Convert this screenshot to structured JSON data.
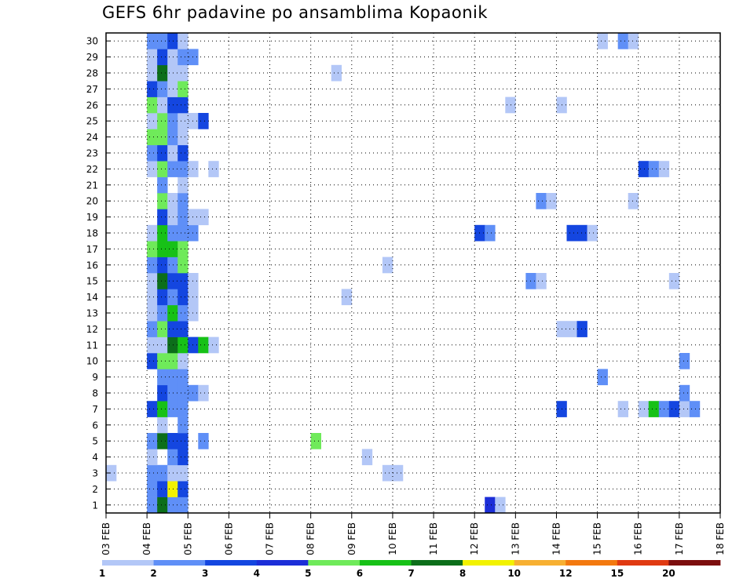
{
  "chart_data": {
    "type": "heatmap",
    "title": "GEFS 6hr padavine po ansamblima Kopaonik",
    "xlabel": "",
    "ylabel": "",
    "x_ticks": [
      "03 FEB",
      "04 FEB",
      "05 FEB",
      "06 FEB",
      "07 FEB",
      "08 FEB",
      "09 FEB",
      "10 FEB",
      "11 FEB",
      "12 FEB",
      "13 FEB",
      "14 FEB",
      "15 FEB",
      "16 FEB",
      "17 FEB",
      "18 FEB"
    ],
    "y_ticks": [
      1,
      2,
      3,
      4,
      5,
      6,
      7,
      8,
      9,
      10,
      11,
      12,
      13,
      14,
      15,
      16,
      17,
      18,
      19,
      20,
      21,
      22,
      23,
      24,
      25,
      26,
      27,
      28,
      29,
      30
    ],
    "xlim": [
      "03 FEB",
      "18 FEB"
    ],
    "ylim": [
      0.5,
      30.5
    ],
    "grid": true,
    "legend_placement": "bottom",
    "levels": [
      1,
      2,
      3,
      4,
      5,
      6,
      7,
      8,
      10,
      12,
      15,
      20
    ],
    "level_colors": [
      "#b3c7f7",
      "#5f8ff7",
      "#1446e0",
      "#1c2ed8",
      "#6fea5a",
      "#17c117",
      "#0c6e1a",
      "#f2f200",
      "#f7b032",
      "#f3790f",
      "#e03a12",
      "#7c0e0e"
    ],
    "cell_step_hours": 6,
    "members": [
      {
        "member": 1,
        "cells": [
          [
            4.0,
            2
          ],
          [
            4.25,
            7
          ],
          [
            4.5,
            2
          ],
          [
            4.75,
            2
          ],
          [
            12.25,
            4
          ],
          [
            12.5,
            1
          ]
        ]
      },
      {
        "member": 2,
        "cells": [
          [
            4.0,
            2
          ],
          [
            4.25,
            3
          ],
          [
            4.5,
            8
          ],
          [
            4.75,
            3
          ]
        ]
      },
      {
        "member": 3,
        "cells": [
          [
            3.0,
            1
          ],
          [
            4.0,
            2
          ],
          [
            4.25,
            2
          ],
          [
            4.5,
            1
          ],
          [
            4.75,
            1
          ],
          [
            9.75,
            1
          ],
          [
            10.0,
            1
          ]
        ]
      },
      {
        "member": 4,
        "cells": [
          [
            4.0,
            1
          ],
          [
            4.5,
            2
          ],
          [
            4.75,
            3
          ],
          [
            9.25,
            1
          ]
        ]
      },
      {
        "member": 5,
        "cells": [
          [
            4.0,
            2
          ],
          [
            4.25,
            7
          ],
          [
            4.5,
            3
          ],
          [
            4.75,
            3
          ],
          [
            5.25,
            2
          ],
          [
            8.0,
            5
          ]
        ]
      },
      {
        "member": 6,
        "cells": [
          [
            4.25,
            1
          ],
          [
            4.75,
            2
          ]
        ]
      },
      {
        "member": 7,
        "cells": [
          [
            4.0,
            3
          ],
          [
            4.25,
            6
          ],
          [
            4.5,
            2
          ],
          [
            4.75,
            2
          ],
          [
            14.0,
            3
          ],
          [
            15.5,
            1
          ],
          [
            16.0,
            1
          ],
          [
            16.25,
            6
          ],
          [
            16.5,
            2
          ],
          [
            16.75,
            3
          ],
          [
            17.0,
            1
          ],
          [
            17.25,
            2
          ]
        ]
      },
      {
        "member": 8,
        "cells": [
          [
            4.25,
            3
          ],
          [
            4.5,
            2
          ],
          [
            4.75,
            2
          ],
          [
            5.0,
            2
          ],
          [
            5.25,
            1
          ],
          [
            17.0,
            2
          ]
        ]
      },
      {
        "member": 9,
        "cells": [
          [
            4.25,
            2
          ],
          [
            4.5,
            2
          ],
          [
            4.75,
            2
          ],
          [
            15.0,
            2
          ]
        ]
      },
      {
        "member": 10,
        "cells": [
          [
            4.0,
            3
          ],
          [
            4.25,
            5
          ],
          [
            4.5,
            5
          ],
          [
            4.75,
            1
          ],
          [
            17.0,
            2
          ]
        ]
      },
      {
        "member": 11,
        "cells": [
          [
            4.0,
            1
          ],
          [
            4.25,
            1
          ],
          [
            4.5,
            7
          ],
          [
            4.75,
            6
          ],
          [
            5.0,
            3
          ],
          [
            5.25,
            6
          ],
          [
            5.5,
            1
          ]
        ]
      },
      {
        "member": 12,
        "cells": [
          [
            4.0,
            2
          ],
          [
            4.25,
            5
          ],
          [
            4.5,
            3
          ],
          [
            4.75,
            3
          ],
          [
            14.0,
            1
          ],
          [
            14.25,
            1
          ],
          [
            14.5,
            3
          ]
        ]
      },
      {
        "member": 13,
        "cells": [
          [
            4.0,
            1
          ],
          [
            4.25,
            2
          ],
          [
            4.5,
            6
          ],
          [
            4.75,
            2
          ],
          [
            5.0,
            1
          ]
        ]
      },
      {
        "member": 14,
        "cells": [
          [
            4.0,
            1
          ],
          [
            4.25,
            3
          ],
          [
            4.5,
            2
          ],
          [
            4.75,
            3
          ],
          [
            5.0,
            1
          ],
          [
            8.75,
            1
          ]
        ]
      },
      {
        "member": 15,
        "cells": [
          [
            4.0,
            1
          ],
          [
            4.25,
            7
          ],
          [
            4.5,
            3
          ],
          [
            4.75,
            3
          ],
          [
            5.0,
            1
          ],
          [
            13.25,
            2
          ],
          [
            13.5,
            1
          ],
          [
            16.75,
            1
          ]
        ]
      },
      {
        "member": 16,
        "cells": [
          [
            4.0,
            2
          ],
          [
            4.25,
            3
          ],
          [
            4.5,
            2
          ],
          [
            4.75,
            5
          ],
          [
            9.75,
            1
          ]
        ]
      },
      {
        "member": 17,
        "cells": [
          [
            4.0,
            5
          ],
          [
            4.25,
            6
          ],
          [
            4.5,
            6
          ],
          [
            4.75,
            5
          ]
        ]
      },
      {
        "member": 18,
        "cells": [
          [
            4.0,
            1
          ],
          [
            4.25,
            6
          ],
          [
            4.5,
            2
          ],
          [
            4.75,
            2
          ],
          [
            5.0,
            2
          ],
          [
            12.0,
            3
          ],
          [
            12.25,
            2
          ],
          [
            14.25,
            3
          ],
          [
            14.5,
            3
          ],
          [
            14.75,
            1
          ]
        ]
      },
      {
        "member": 19,
        "cells": [
          [
            4.25,
            3
          ],
          [
            4.5,
            1
          ],
          [
            4.75,
            2
          ],
          [
            5.0,
            1
          ],
          [
            5.25,
            1
          ]
        ]
      },
      {
        "member": 20,
        "cells": [
          [
            4.25,
            5
          ],
          [
            4.5,
            1
          ],
          [
            4.75,
            2
          ],
          [
            13.5,
            2
          ],
          [
            13.75,
            1
          ],
          [
            15.75,
            1
          ]
        ]
      },
      {
        "member": 21,
        "cells": [
          [
            4.25,
            2
          ],
          [
            4.75,
            1
          ]
        ]
      },
      {
        "member": 22,
        "cells": [
          [
            4.0,
            1
          ],
          [
            4.25,
            5
          ],
          [
            4.5,
            2
          ],
          [
            4.75,
            2
          ],
          [
            5.0,
            1
          ],
          [
            5.5,
            1
          ],
          [
            16.0,
            3
          ],
          [
            16.25,
            2
          ],
          [
            16.5,
            1
          ]
        ]
      },
      {
        "member": 23,
        "cells": [
          [
            4.0,
            2
          ],
          [
            4.25,
            3
          ],
          [
            4.5,
            1
          ],
          [
            4.75,
            3
          ]
        ]
      },
      {
        "member": 24,
        "cells": [
          [
            4.0,
            5
          ],
          [
            4.25,
            5
          ],
          [
            4.5,
            2
          ],
          [
            4.75,
            1
          ]
        ]
      },
      {
        "member": 25,
        "cells": [
          [
            4.0,
            1
          ],
          [
            4.25,
            5
          ],
          [
            4.5,
            2
          ],
          [
            4.75,
            1
          ],
          [
            5.0,
            1
          ],
          [
            5.25,
            3
          ]
        ]
      },
      {
        "member": 26,
        "cells": [
          [
            4.0,
            5
          ],
          [
            4.25,
            1
          ],
          [
            4.5,
            3
          ],
          [
            4.75,
            3
          ],
          [
            12.75,
            1
          ],
          [
            14.0,
            1
          ]
        ]
      },
      {
        "member": 27,
        "cells": [
          [
            4.0,
            3
          ],
          [
            4.25,
            2
          ],
          [
            4.5,
            1
          ],
          [
            4.75,
            5
          ]
        ]
      },
      {
        "member": 28,
        "cells": [
          [
            4.0,
            1
          ],
          [
            4.25,
            7
          ],
          [
            4.5,
            1
          ],
          [
            4.75,
            1
          ],
          [
            8.5,
            1
          ]
        ]
      },
      {
        "member": 29,
        "cells": [
          [
            4.0,
            1
          ],
          [
            4.25,
            3
          ],
          [
            4.5,
            1
          ],
          [
            4.75,
            2
          ],
          [
            5.0,
            2
          ]
        ]
      },
      {
        "member": 30,
        "cells": [
          [
            4.0,
            2
          ],
          [
            4.25,
            2
          ],
          [
            4.5,
            3
          ],
          [
            4.75,
            1
          ],
          [
            15.0,
            1
          ],
          [
            15.5,
            2
          ],
          [
            15.75,
            1
          ]
        ]
      }
    ]
  }
}
